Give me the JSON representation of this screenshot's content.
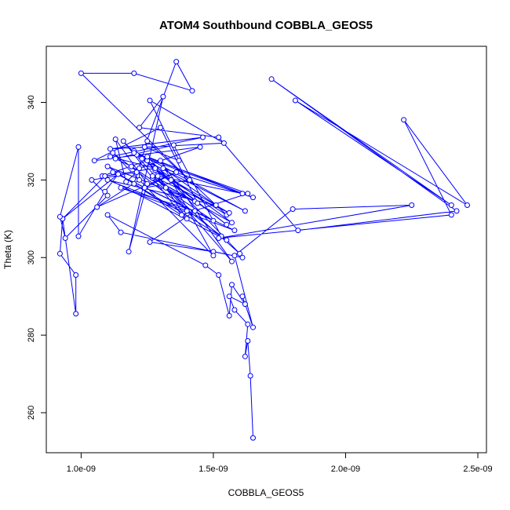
{
  "chart_data": {
    "type": "scatter",
    "title": "ATOM4 Southbound COBBLA_GEOS5",
    "xlabel": "COBBLA_GEOS5",
    "ylabel": "Theta (K)",
    "xlim": [
      9e-10,
      2.55e-09
    ],
    "ylim": [
      250,
      355
    ],
    "x_ticks": [
      1e-09,
      1.5e-09,
      2e-09,
      2.5e-09
    ],
    "x_tick_labels": [
      "1.0e-09",
      "1.5e-09",
      "2.0e-09",
      "2.5e-09"
    ],
    "y_ticks": [
      260,
      280,
      300,
      320,
      340
    ],
    "y_tick_labels": [
      "260",
      "280",
      "300",
      "320",
      "340"
    ],
    "color": "#0000ff",
    "series": [
      {
        "x": [
          1.65e-09,
          1.64e-09,
          1.63e-09,
          1.62e-09,
          1.63e-09,
          1.58e-09,
          1.56e-09,
          1.62e-09,
          1.57e-09,
          1.56e-09,
          1.52e-09,
          1.47e-09,
          1.1e-09,
          1.15e-09,
          1.61e-09,
          1.5e-09,
          1.26e-09,
          1.43e-09,
          1.15e-09,
          1.58e-09,
          1.12e-09,
          1.5e-09,
          1.19e-09,
          1.13e-09,
          1.35e-09,
          1.53e-09,
          1.2e-09,
          1.25e-09,
          1.55e-09,
          1.34e-09,
          1.21e-09,
          1.61e-09,
          1.29e-09,
          1.57e-09,
          1.3e-09,
          1.5e-09,
          1.12e-09,
          1.55e-09,
          1.08e-09,
          1.25e-09,
          1.4e-09,
          1.1e-09,
          1.43e-09,
          1.27e-09,
          1.57e-09,
          1.2e-09,
          1.62e-09,
          1.23e-09,
          1.55e-09,
          1.28e-09,
          1.56e-09,
          1.27e-09,
          1.6e-09,
          1.25e-09,
          1.65e-09,
          1.31e-09,
          1.51e-09,
          1.1e-09,
          1.4e-09,
          1.16e-09,
          1.38e-09,
          1.63e-09,
          1.2e-09,
          1.32e-09,
          1.44e-09,
          1.3e-09,
          1.05e-09,
          1.45e-09,
          1.22e-09,
          1.22e-09,
          1.06e-09,
          1.36e-09,
          1.24e-09,
          1.41e-09,
          1e-09,
          1.2e-09,
          1.42e-09,
          1.36e-09,
          1.24e-09,
          1.37e-09,
          1.26e-09,
          1.54e-09,
          1.11e-09,
          1.46e-09,
          1.11e-09,
          1.28e-09,
          1.09e-09,
          9.3e-10,
          9.2e-10,
          9.8e-10,
          9.8e-10,
          9.3e-10,
          1.14e-09,
          1.09e-09,
          9.9e-10,
          9.9e-10,
          9.2e-10,
          9.4e-10,
          1.1e-09,
          1.04e-09,
          1.21e-09,
          1.17e-09,
          1.13e-09,
          1.25e-09,
          1.18e-09,
          1.31e-09,
          1.22e-09,
          1.52e-09,
          1.82e-09,
          2.42e-09,
          1.72e-09,
          2.4e-09,
          1.81e-09,
          2.46e-09,
          2.22e-09,
          2.4e-09,
          1.52e-09,
          2.25e-09,
          1.8e-09,
          1.58e-09,
          1.65e-09,
          1.61e-09
        ],
        "y": [
          253.5,
          269.5,
          278.5,
          274.5,
          282.8,
          286.5,
          290.0,
          288.0,
          293.0,
          285.0,
          295.5,
          298.0,
          311.0,
          306.5,
          300.0,
          301.5,
          304.0,
          312.0,
          318.0,
          307.0,
          322.0,
          309.5,
          323.5,
          325.5,
          329.0,
          305.5,
          319.0,
          330.0,
          311.0,
          320.0,
          326.5,
          316.5,
          321.0,
          299.0,
          325.0,
          300.5,
          327.0,
          304.5,
          321.0,
          325.0,
          310.0,
          323.5,
          314.5,
          320.5,
          309.0,
          327.5,
          312.0,
          325.5,
          308.5,
          322.5,
          311.5,
          321.0,
          301.0,
          326.0,
          315.5,
          323.0,
          313.5,
          320.0,
          312.0,
          330.0,
          311.0,
          316.5,
          327.0,
          318.0,
          314.0,
          333.5,
          325.0,
          328.5,
          323.0,
          320.0,
          313.0,
          322.0,
          318.0,
          320.0,
          347.5,
          347.5,
          343.0,
          350.5,
          328.5,
          325.0,
          340.5,
          329.5,
          328.0,
          331.0,
          326.0,
          323.0,
          321.0,
          310.0,
          301.0,
          295.5,
          285.5,
          310.0,
          321.5,
          317.0,
          305.5,
          328.5,
          310.5,
          305.0,
          316.0,
          320.0,
          322.0,
          319.5,
          330.5,
          319.0,
          301.5,
          341.5,
          333.5,
          331.0,
          307.0,
          312.0,
          346.0,
          313.5,
          340.5,
          313.5,
          335.5,
          311.0,
          305.0,
          313.5,
          312.5,
          300.5,
          282.0,
          290.0
        ]
      }
    ]
  }
}
